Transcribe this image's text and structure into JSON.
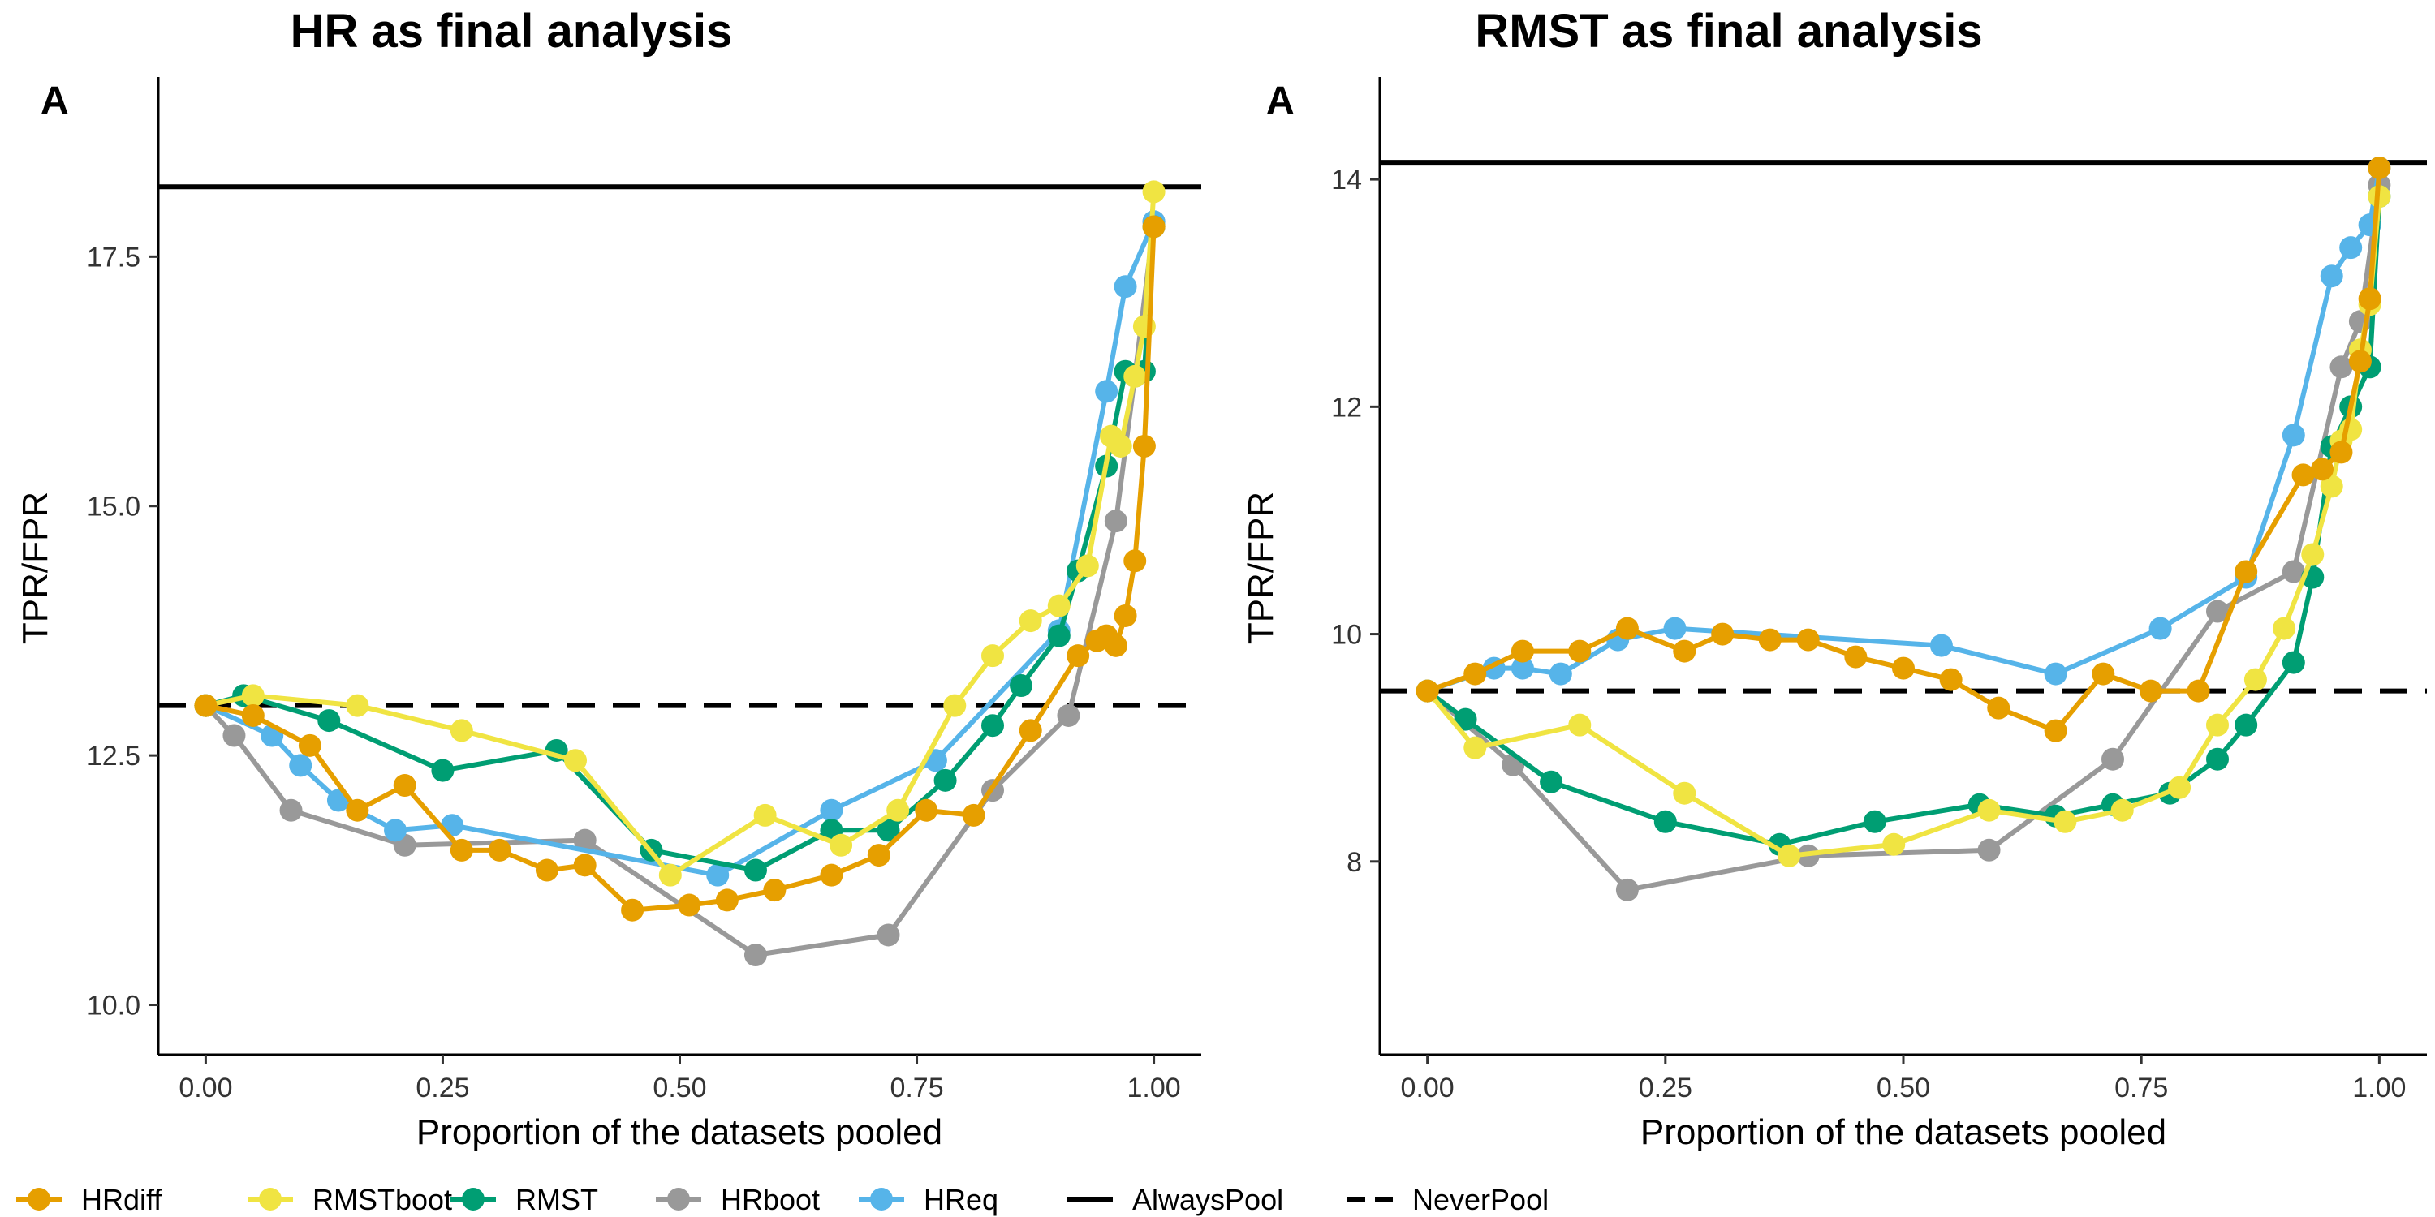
{
  "chart_data": [
    {
      "type": "line",
      "title": "HR as final analysis",
      "panel_tag": "A",
      "xlabel": "Proportion of the datasets pooled",
      "ylabel": "TPR/FPR",
      "xlim": [
        -0.05,
        1.05
      ],
      "ylim": [
        9.5,
        19.3
      ],
      "xticks": [
        0.0,
        0.25,
        0.5,
        0.75,
        1.0
      ],
      "xtick_labels": [
        "0.00",
        "0.25",
        "0.50",
        "0.75",
        "1.00"
      ],
      "yticks": [
        10.0,
        12.5,
        15.0,
        17.5
      ],
      "ytick_labels": [
        "10.0",
        "12.5",
        "15.0",
        "17.5"
      ],
      "grid": false,
      "reference_lines": [
        {
          "name": "AlwaysPool",
          "y": 18.2,
          "style": "solid"
        },
        {
          "name": "NeverPool",
          "y": 13.0,
          "style": "dashed"
        }
      ],
      "series": [
        {
          "name": "HRdiff",
          "x": [
            0.0,
            0.05,
            0.11,
            0.16,
            0.21,
            0.27,
            0.31,
            0.36,
            0.4,
            0.45,
            0.51,
            0.55,
            0.6,
            0.66,
            0.71,
            0.76,
            0.81,
            0.87,
            0.92,
            0.94,
            0.95,
            0.96,
            0.97,
            0.98,
            0.99,
            1.0
          ],
          "y": [
            13.0,
            12.9,
            12.6,
            11.95,
            12.2,
            11.55,
            11.55,
            11.35,
            11.4,
            10.95,
            11.0,
            11.05,
            11.15,
            11.3,
            11.5,
            11.95,
            11.9,
            12.75,
            13.5,
            13.65,
            13.7,
            13.6,
            13.9,
            14.45,
            15.6,
            17.8
          ]
        },
        {
          "name": "RMSTboot",
          "x": [
            0.0,
            0.05,
            0.16,
            0.27,
            0.39,
            0.49,
            0.59,
            0.67,
            0.73,
            0.79,
            0.83,
            0.87,
            0.9,
            0.93,
            0.955,
            0.965,
            0.98,
            0.99,
            1.0
          ],
          "y": [
            13.0,
            13.1,
            13.0,
            12.75,
            12.45,
            11.3,
            11.9,
            11.6,
            11.95,
            13.0,
            13.5,
            13.85,
            14.0,
            14.4,
            15.7,
            15.6,
            16.3,
            16.8,
            18.15
          ]
        },
        {
          "name": "RMST",
          "x": [
            0.0,
            0.04,
            0.13,
            0.25,
            0.37,
            0.47,
            0.58,
            0.66,
            0.72,
            0.78,
            0.83,
            0.86,
            0.9,
            0.92,
            0.95,
            0.97,
            0.99,
            1.0
          ],
          "y": [
            13.0,
            13.1,
            12.85,
            12.35,
            12.55,
            11.55,
            11.35,
            11.75,
            11.75,
            12.25,
            12.8,
            13.2,
            13.7,
            14.35,
            15.4,
            16.35,
            16.35,
            17.8
          ]
        },
        {
          "name": "HRboot",
          "x": [
            0.0,
            0.03,
            0.09,
            0.21,
            0.4,
            0.58,
            0.72,
            0.83,
            0.91,
            0.96,
            0.98,
            1.0
          ],
          "y": [
            13.0,
            12.7,
            11.95,
            11.6,
            11.65,
            10.5,
            10.7,
            12.15,
            12.9,
            14.85,
            16.3,
            17.85
          ]
        },
        {
          "name": "HReq",
          "x": [
            0.0,
            0.07,
            0.1,
            0.14,
            0.2,
            0.26,
            0.54,
            0.66,
            0.77,
            0.9,
            0.95,
            0.97,
            1.0
          ],
          "y": [
            13.0,
            12.7,
            12.4,
            12.05,
            11.75,
            11.8,
            11.3,
            11.95,
            12.45,
            13.75,
            16.15,
            17.2,
            17.85
          ]
        }
      ]
    },
    {
      "type": "line",
      "title": "RMST as final analysis",
      "panel_tag": "A",
      "xlabel": "Proportion of the datasets pooled",
      "ylabel": "TPR/FPR",
      "xlim": [
        -0.05,
        1.05
      ],
      "ylim": [
        6.3,
        14.9
      ],
      "xticks": [
        0.0,
        0.25,
        0.5,
        0.75,
        1.0
      ],
      "xtick_labels": [
        "0.00",
        "0.25",
        "0.50",
        "0.75",
        "1.00"
      ],
      "yticks": [
        8,
        10,
        12,
        14
      ],
      "ytick_labels": [
        "8",
        "10",
        "12",
        "14"
      ],
      "grid": false,
      "reference_lines": [
        {
          "name": "AlwaysPool",
          "y": 14.15,
          "style": "solid"
        },
        {
          "name": "NeverPool",
          "y": 9.5,
          "style": "dashed"
        }
      ],
      "series": [
        {
          "name": "HRdiff",
          "x": [
            0.0,
            0.05,
            0.1,
            0.16,
            0.21,
            0.27,
            0.31,
            0.36,
            0.4,
            0.45,
            0.5,
            0.55,
            0.6,
            0.66,
            0.71,
            0.76,
            0.81,
            0.86,
            0.92,
            0.94,
            0.96,
            0.98,
            0.99,
            1.0
          ],
          "y": [
            9.5,
            9.65,
            9.85,
            9.85,
            10.05,
            9.85,
            10.0,
            9.95,
            9.95,
            9.8,
            9.7,
            9.6,
            9.35,
            9.15,
            9.65,
            9.5,
            9.5,
            10.55,
            11.4,
            11.45,
            11.6,
            12.4,
            12.95,
            14.1
          ]
        },
        {
          "name": "RMSTboot",
          "x": [
            0.0,
            0.05,
            0.16,
            0.27,
            0.38,
            0.49,
            0.59,
            0.67,
            0.73,
            0.79,
            0.83,
            0.87,
            0.9,
            0.93,
            0.95,
            0.96,
            0.97,
            0.98,
            0.99,
            1.0
          ],
          "y": [
            9.5,
            9.0,
            9.2,
            8.6,
            8.05,
            8.15,
            8.45,
            8.35,
            8.45,
            8.65,
            9.2,
            9.6,
            10.05,
            10.7,
            11.3,
            11.7,
            11.8,
            12.5,
            12.9,
            13.85
          ]
        },
        {
          "name": "RMST",
          "x": [
            0.0,
            0.04,
            0.13,
            0.25,
            0.37,
            0.47,
            0.58,
            0.66,
            0.72,
            0.78,
            0.83,
            0.86,
            0.91,
            0.93,
            0.95,
            0.97,
            0.99,
            1.0
          ],
          "y": [
            9.5,
            9.25,
            8.7,
            8.35,
            8.15,
            8.35,
            8.5,
            8.4,
            8.5,
            8.6,
            8.9,
            9.2,
            9.75,
            10.5,
            11.65,
            12.0,
            12.35,
            13.85
          ]
        },
        {
          "name": "HRboot",
          "x": [
            0.0,
            0.09,
            0.21,
            0.4,
            0.59,
            0.72,
            0.83,
            0.91,
            0.96,
            0.98,
            1.0
          ],
          "y": [
            9.5,
            8.85,
            7.75,
            8.05,
            8.1,
            8.9,
            10.2,
            10.55,
            12.35,
            12.75,
            13.95
          ]
        },
        {
          "name": "HReq",
          "x": [
            0.0,
            0.07,
            0.1,
            0.14,
            0.2,
            0.26,
            0.54,
            0.66,
            0.77,
            0.86,
            0.91,
            0.95,
            0.97,
            0.99,
            1.0
          ],
          "y": [
            9.5,
            9.7,
            9.7,
            9.65,
            9.95,
            10.05,
            9.9,
            9.65,
            10.05,
            10.5,
            11.75,
            13.15,
            13.4,
            13.6,
            14.1
          ]
        }
      ]
    }
  ],
  "legend": {
    "placement": "bottom",
    "items": [
      {
        "label": "HRdiff",
        "kind": "point-line",
        "color": "#E69F00"
      },
      {
        "label": "RMSTboot",
        "kind": "point-line",
        "color": "#F0E442"
      },
      {
        "label": "RMST",
        "kind": "point-line",
        "color": "#009E73"
      },
      {
        "label": "HRboot",
        "kind": "point-line",
        "color": "#999999"
      },
      {
        "label": "HReq",
        "kind": "point-line",
        "color": "#56B4E9"
      },
      {
        "label": "AlwaysPool",
        "kind": "line-solid",
        "color": "#000000"
      },
      {
        "label": "NeverPool",
        "kind": "line-dashed",
        "color": "#000000"
      }
    ]
  },
  "series_colors": {
    "HRdiff": "#E69F00",
    "RMSTboot": "#F0E442",
    "RMST": "#009E73",
    "HRboot": "#999999",
    "HReq": "#56B4E9"
  },
  "series_draw_order": [
    "HRboot",
    "HReq",
    "RMST",
    "RMSTboot",
    "HRdiff"
  ]
}
